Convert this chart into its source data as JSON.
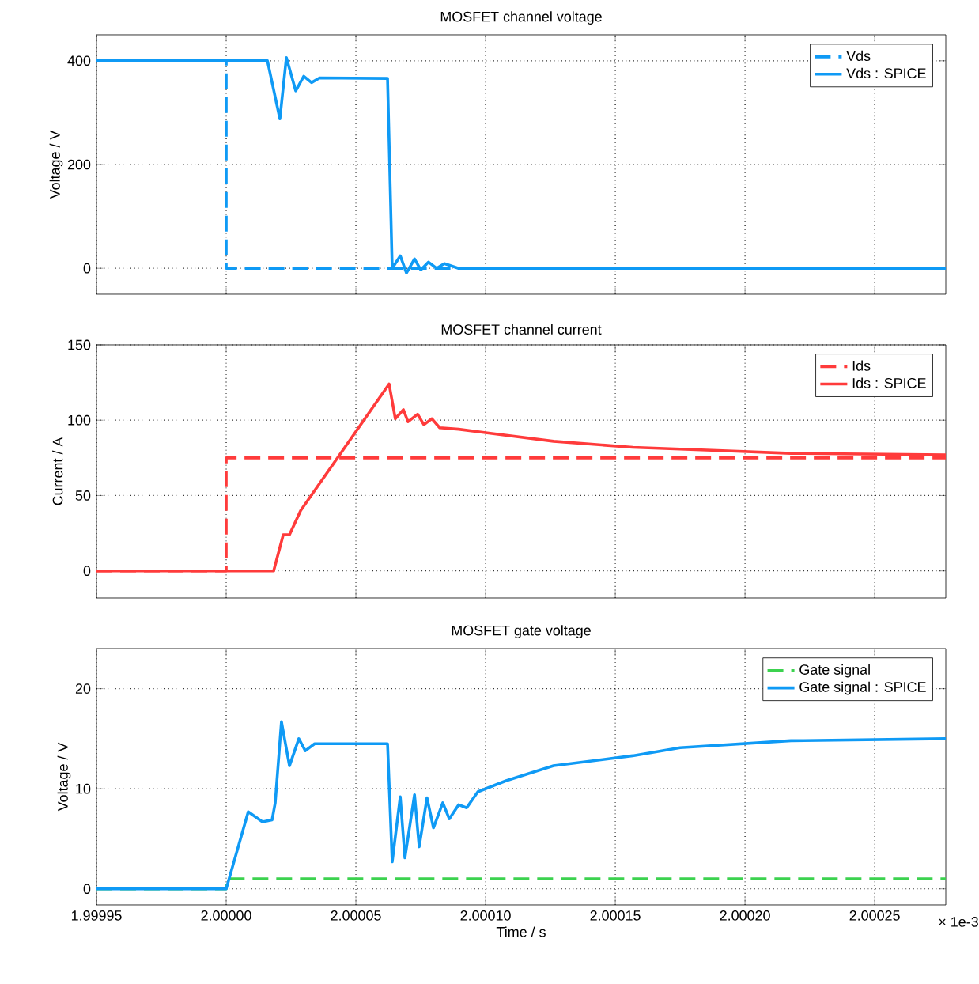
{
  "chart_data": [
    {
      "type": "line",
      "title": "MOSFET channel voltage",
      "ylabel": "Voltage / V",
      "xlim": [
        1.99995,
        2.0002774
      ],
      "xticks": [
        1.99995,
        2.0,
        2.00005,
        2.0001,
        2.00015,
        2.0002,
        2.00025
      ],
      "ylim": [
        -50,
        450
      ],
      "yticks": [
        0,
        200,
        400
      ],
      "grid": true,
      "legend": "top right",
      "tick_labels": "y",
      "series": [
        {
          "name": "Vds",
          "color": "#0f9af5",
          "line_style": "dashed",
          "x": [
            1.99995,
            2.0,
            2.0,
            2.0002774
          ],
          "values": [
            400,
            400,
            0,
            0
          ]
        },
        {
          "name": "Vds : SPICE",
          "color": "#0f9af5",
          "line_style": "solid",
          "x": [
            1.99995,
            2.0000159,
            2.0000207,
            2.0000232,
            2.0000268,
            2.0000299,
            2.0000329,
            2.000036,
            2.0000622,
            2.000064,
            2.0000671,
            2.0000695,
            2.0000726,
            2.000075,
            2.000078,
            2.0000811,
            2.0000841,
            2.0000896,
            2.0002774
          ],
          "values": [
            400,
            400,
            288,
            406,
            342,
            370,
            358,
            367,
            366,
            0,
            24,
            -9,
            18,
            -3,
            12,
            0,
            9,
            0,
            0
          ]
        }
      ]
    },
    {
      "type": "line",
      "title": "MOSFET channel current",
      "ylabel": "Current / A",
      "xlim": [
        1.99995,
        2.0002774
      ],
      "xticks": [
        1.99995,
        2.0,
        2.00005,
        2.0001,
        2.00015,
        2.0002,
        2.00025
      ],
      "ylim": [
        -18,
        150
      ],
      "yticks": [
        0,
        50,
        100,
        150
      ],
      "grid": true,
      "legend": "top right",
      "tick_labels": "y",
      "series": [
        {
          "name": "Ids",
          "color": "#ff3b3b",
          "line_style": "dashed",
          "x": [
            1.99995,
            2.0,
            2.0,
            2.0002774
          ],
          "values": [
            0,
            0,
            75,
            75
          ]
        },
        {
          "name": "Ids : SPICE",
          "color": "#ff3b3b",
          "line_style": "solid",
          "x": [
            1.99995,
            2.0000183,
            2.000022,
            2.0000244,
            2.0000287,
            2.0000628,
            2.0000652,
            2.0000683,
            2.0000701,
            2.0000738,
            2.0000762,
            2.0000793,
            2.0000823,
            2.0000896,
            2.0000988,
            2.0001262,
            2.0001567,
            2.0001872,
            2.0002177,
            2.0002774
          ],
          "values": [
            0,
            0,
            24,
            24,
            40,
            124,
            101,
            107,
            99,
            104,
            97,
            101,
            95,
            94,
            92,
            86,
            82,
            80,
            78,
            77
          ]
        }
      ]
    },
    {
      "type": "line",
      "title": "MOSFET gate voltage",
      "ylabel": "Voltage / V",
      "xlabel": "Time / s",
      "annotations": [
        "× 1e-3"
      ],
      "xlim": [
        1.99995,
        2.0002774
      ],
      "xticks": [
        1.99995,
        {
          "value": 2.0,
          "label": "2.00000"
        },
        2.00005,
        {
          "value": 2.0001,
          "label": "2.00010"
        },
        2.00015,
        {
          "value": 2.0002,
          "label": "2.00020"
        },
        2.00025
      ],
      "ylim": [
        -1.6,
        24
      ],
      "yticks": [
        0,
        10,
        20
      ],
      "grid": true,
      "legend": "top right",
      "series": [
        {
          "name": "Gate signal",
          "color": "#3cd24f",
          "line_style": "dashed",
          "x": [
            1.99995,
            2.0,
            2.0,
            2.0002774
          ],
          "values": [
            0,
            0,
            1,
            1
          ]
        },
        {
          "name": "Gate signal : SPICE",
          "color": "#0f9af5",
          "line_style": "solid",
          "x": [
            1.99995,
            2.0,
            2.0000085,
            2.000014,
            2.0000177,
            2.0000189,
            2.0000213,
            2.0000244,
            2.000028,
            2.0000305,
            2.0000341,
            2.0000622,
            2.000064,
            2.0000671,
            2.0000689,
            2.0000726,
            2.0000744,
            2.0000774,
            2.0000799,
            2.0000835,
            2.000086,
            2.0000896,
            2.0000927,
            2.000097,
            2.0001079,
            2.0001262,
            2.0001567,
            2.000175,
            2.0002177,
            2.0002774
          ],
          "values": [
            0,
            0,
            7.7,
            6.7,
            6.9,
            8.6,
            16.7,
            12.3,
            15,
            13.8,
            14.5,
            14.5,
            2.7,
            9.2,
            3.1,
            9.4,
            4.2,
            9.1,
            6.1,
            8.6,
            7.0,
            8.4,
            8.1,
            9.7,
            10.8,
            12.3,
            13.3,
            14.1,
            14.8,
            15
          ]
        }
      ]
    }
  ]
}
